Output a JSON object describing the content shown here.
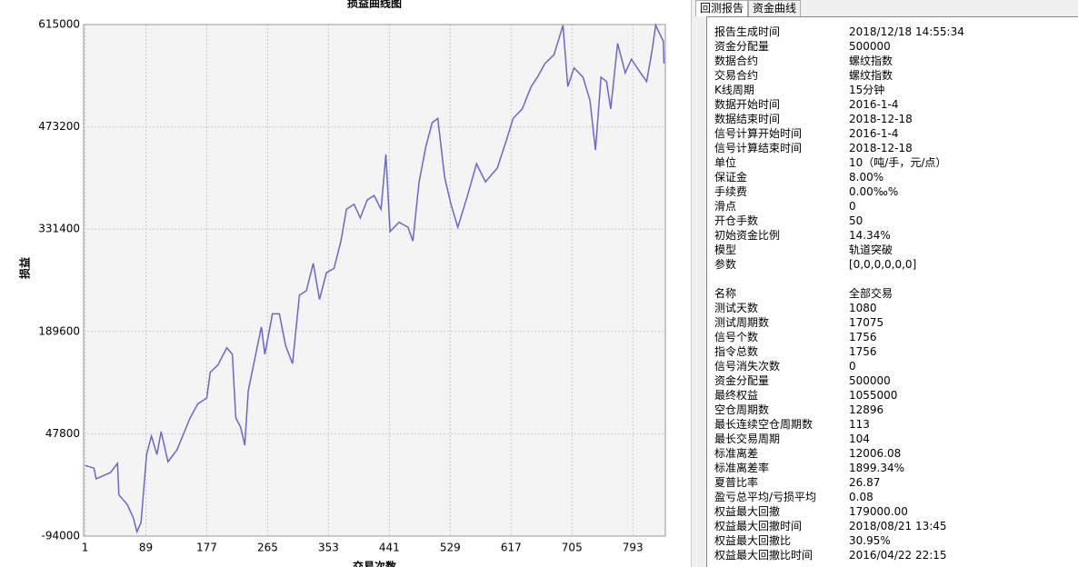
{
  "tabs": [
    "回测报告",
    "资金曲线"
  ],
  "chart_data": {
    "type": "line",
    "title": "损益曲线图",
    "x_label": "交易次数",
    "y_label": "损益",
    "color": "#6a66cc",
    "grid": true,
    "xlim": [
      -1,
      840
    ],
    "ylim": [
      -94000,
      615000
    ],
    "xticks": [
      1,
      89,
      177,
      265,
      353,
      441,
      529,
      617,
      705,
      793
    ],
    "yticks": [
      -94000,
      47800,
      189600,
      331400,
      473200,
      615000
    ],
    "x": [
      1,
      14,
      17,
      38,
      48,
      50,
      62,
      71,
      76,
      82,
      90,
      97,
      105,
      111,
      121,
      134,
      153,
      164,
      177,
      182,
      193,
      206,
      214,
      219,
      226,
      232,
      237,
      245,
      256,
      261,
      272,
      282,
      291,
      301,
      311,
      321,
      331,
      340,
      350,
      361,
      371,
      379,
      390,
      399,
      409,
      419,
      429,
      436,
      442,
      455,
      468,
      475,
      484,
      494,
      503,
      511,
      521,
      530,
      540,
      554,
      567,
      580,
      597,
      610,
      620,
      633,
      646,
      655,
      666,
      679,
      692,
      699,
      708,
      721,
      731,
      739,
      747,
      755,
      761,
      771,
      782,
      791,
      804,
      813,
      821,
      826,
      837,
      838
    ],
    "values": [
      4000,
      200,
      -14600,
      -5800,
      6800,
      -37000,
      -50000,
      -69000,
      -88000,
      -75000,
      19000,
      44600,
      19000,
      50800,
      9000,
      25700,
      70000,
      89000,
      97500,
      133000,
      143000,
      167000,
      158000,
      70000,
      57000,
      32000,
      107000,
      145000,
      196000,
      158000,
      214000,
      214000,
      170000,
      145000,
      240000,
      246000,
      284000,
      234000,
      271000,
      277000,
      315000,
      359000,
      366000,
      347000,
      372000,
      378000,
      359000,
      435000,
      328000,
      341000,
      334000,
      315000,
      397000,
      447000,
      479000,
      485000,
      403000,
      366000,
      334000,
      378000,
      422000,
      397000,
      416000,
      454000,
      485000,
      498000,
      529000,
      542000,
      561000,
      573000,
      614000,
      529000,
      555000,
      542000,
      510000,
      441000,
      542000,
      536000,
      498000,
      589000,
      548000,
      567000,
      548000,
      536000,
      580000,
      614000,
      592000,
      561000
    ]
  },
  "report": {
    "groups": [
      {
        "rows": [
          [
            "报告生成时间",
            "2018/12/18 14:55:34"
          ],
          [
            "资金分配量",
            "500000"
          ],
          [
            "数据合约",
            "螺纹指数"
          ],
          [
            "交易合约",
            "螺纹指数"
          ],
          [
            "K线周期",
            "15分钟"
          ],
          [
            "数据开始时间",
            "2016-1-4"
          ],
          [
            "数据结束时间",
            "2018-12-18"
          ],
          [
            "信号计算开始时间",
            "2016-1-4"
          ],
          [
            "信号计算结束时间",
            "2018-12-18"
          ],
          [
            "单位",
            "10（吨/手，元/点）"
          ],
          [
            "保证金",
            "8.00%"
          ],
          [
            "手续费",
            "0.00‰%"
          ],
          [
            "滑点",
            "0"
          ],
          [
            "开仓手数",
            "50"
          ],
          [
            "初始资金比例",
            "14.34%"
          ],
          [
            "模型",
            "轨道突破"
          ],
          [
            "参数",
            "[0,0,0,0,0,0]"
          ]
        ]
      },
      {
        "rows": [
          [
            "名称",
            "全部交易"
          ],
          [
            "测试天数",
            "1080"
          ],
          [
            "测试周期数",
            "17075"
          ],
          [
            "信号个数",
            "1756"
          ],
          [
            "指令总数",
            "1756"
          ],
          [
            "信号消失次数",
            "0"
          ],
          [
            "资金分配量",
            "500000"
          ],
          [
            "最终权益",
            "1055000"
          ],
          [
            "空仓周期数",
            "12896"
          ],
          [
            "最长连续空仓周期数",
            "113"
          ],
          [
            "最长交易周期",
            "104"
          ],
          [
            "标准离差",
            "12006.08"
          ],
          [
            "标准离差率",
            "1899.34%"
          ],
          [
            "夏普比率",
            "26.87"
          ],
          [
            "盈亏总平均/亏损平均",
            "0.08"
          ],
          [
            "权益最大回撤",
            "179000.00"
          ],
          [
            "权益最大回撤时间",
            "2018/08/21 13:45"
          ],
          [
            "权益最大回撤比",
            "30.95%"
          ],
          [
            "权益最大回撤比时间",
            "2016/04/22 22:15"
          ]
        ]
      }
    ]
  }
}
